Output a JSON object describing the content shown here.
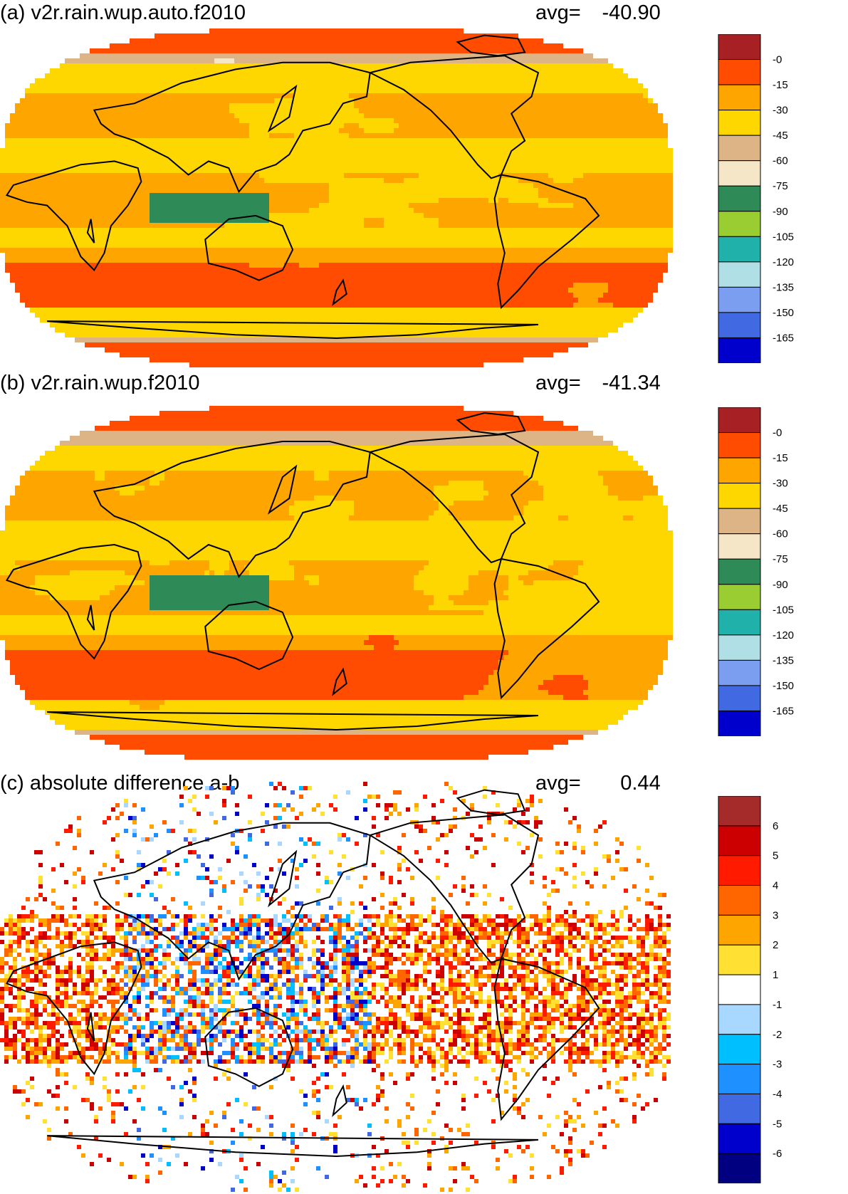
{
  "chart_data": [
    {
      "type": "heatmap",
      "panel": "a",
      "title": "(a) v2r.rain.wup.auto.f2010",
      "avg_label": "avg=",
      "avg_value": "-40.90",
      "projection": "Robinson, centered on the Pacific",
      "colorbar": {
        "labels": [
          "-0",
          "-15",
          "-30",
          "-45",
          "-60",
          "-75",
          "-90",
          "-105",
          "-120",
          "-135",
          "-150",
          "-165"
        ],
        "colors": [
          "#a62024",
          "#ff4c00",
          "#ffa500",
          "#ffd700",
          "#dcb485",
          "#f5e6c8",
          "#2e8b57",
          "#9acd32",
          "#20b2aa",
          "#b0e0e6",
          "#7b9ef0",
          "#4169e1",
          "#0000cd"
        ]
      }
    },
    {
      "type": "heatmap",
      "panel": "b",
      "title": "(b) v2r.rain.wup.f2010",
      "avg_label": "avg=",
      "avg_value": "-41.34",
      "projection": "Robinson, centered on the Pacific",
      "colorbar": {
        "labels": [
          "-0",
          "-15",
          "-30",
          "-45",
          "-60",
          "-75",
          "-90",
          "-105",
          "-120",
          "-135",
          "-150",
          "-165"
        ],
        "colors": [
          "#a62024",
          "#ff4c00",
          "#ffa500",
          "#ffd700",
          "#dcb485",
          "#f5e6c8",
          "#2e8b57",
          "#9acd32",
          "#20b2aa",
          "#b0e0e6",
          "#7b9ef0",
          "#4169e1",
          "#0000cd"
        ]
      }
    },
    {
      "type": "heatmap",
      "panel": "c",
      "title": "(c) absolute difference a-b",
      "avg_label": "avg=",
      "avg_value": "0.44",
      "projection": "Robinson, centered on the Pacific",
      "colorbar": {
        "labels": [
          "6",
          "5",
          "4",
          "3",
          "2",
          "1",
          "-1",
          "-2",
          "-3",
          "-4",
          "-5",
          "-6"
        ],
        "colors": [
          "#a52a2a",
          "#cc0000",
          "#ff1a00",
          "#ff6600",
          "#ffa500",
          "#ffe033",
          "#ffffff",
          "#a8d8ff",
          "#00bfff",
          "#1e90ff",
          "#4169e1",
          "#0000cd",
          "#000080"
        ]
      }
    }
  ]
}
